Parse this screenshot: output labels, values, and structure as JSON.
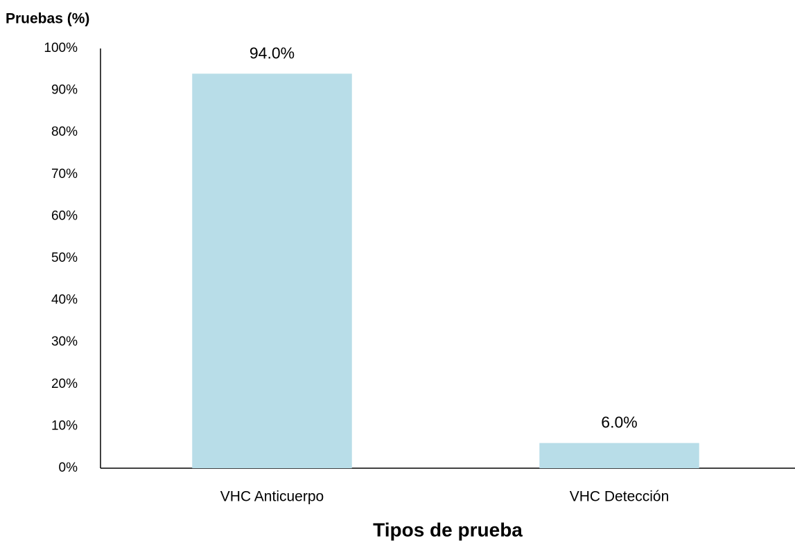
{
  "chart_data": {
    "type": "bar",
    "y_axis_label": "Pruebas (%)",
    "x_axis_label": "Tipos de prueba",
    "categories": [
      "VHC Anticuerpo",
      "VHC Detección"
    ],
    "values": [
      94,
      6
    ],
    "value_labels": [
      "94.0%",
      "6.0%"
    ],
    "color": "#b8dde8",
    "ylim": [
      0,
      100
    ],
    "yticks": [
      {
        "value": 0,
        "label": "0%"
      },
      {
        "value": 10,
        "label": "10%"
      },
      {
        "value": 20,
        "label": "20%"
      },
      {
        "value": 30,
        "label": "30%"
      },
      {
        "value": 40,
        "label": "40%"
      },
      {
        "value": 50,
        "label": "50%"
      },
      {
        "value": 60,
        "label": "60%"
      },
      {
        "value": 70,
        "label": "70%"
      },
      {
        "value": 80,
        "label": "80%"
      },
      {
        "value": 90,
        "label": "90%"
      },
      {
        "value": 100,
        "label": "100%"
      }
    ],
    "grid": false
  }
}
